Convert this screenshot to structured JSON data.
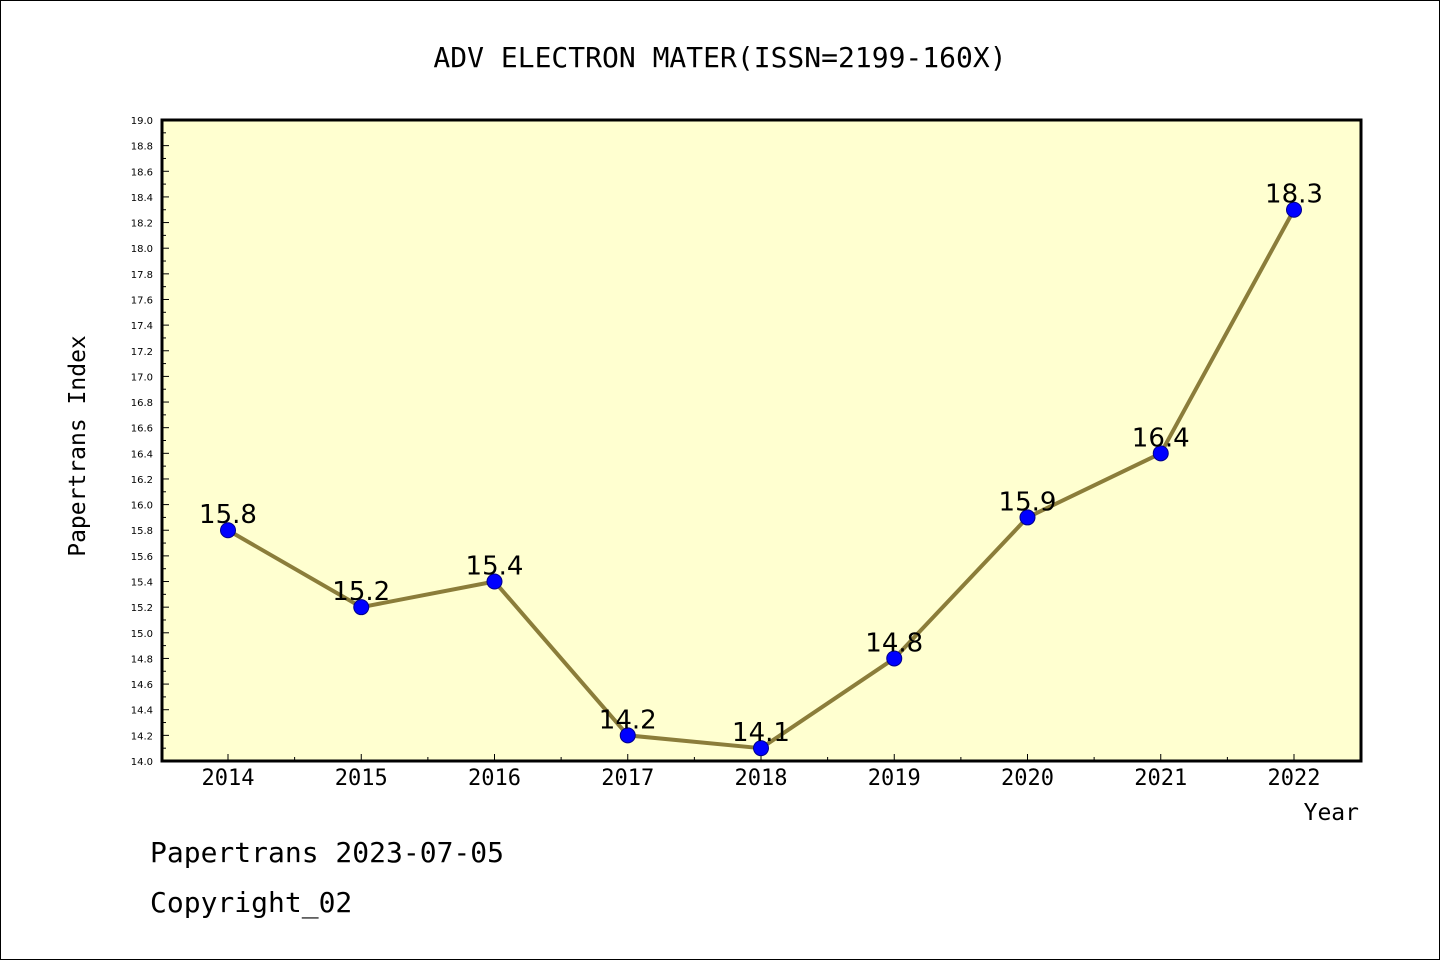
{
  "chart_data": {
    "type": "line",
    "title": "ADV ELECTRON MATER(ISSN=2199-160X)",
    "xlabel": "Year",
    "ylabel": "Papertrans Index",
    "categories": [
      "2014",
      "2015",
      "2016",
      "2017",
      "2018",
      "2019",
      "2020",
      "2021",
      "2022"
    ],
    "series": [
      {
        "values": [
          15.8,
          15.2,
          15.4,
          14.2,
          14.1,
          14.8,
          15.9,
          16.4,
          18.3
        ]
      }
    ],
    "data_labels": [
      "15.8",
      "15.2",
      "15.4",
      "14.2",
      "14.1",
      "14.8",
      "15.9",
      "16.4",
      "18.3"
    ],
    "ylim": [
      14.0,
      19.0
    ],
    "ytick_step": 0.2,
    "grid": false,
    "colors": {
      "plot_background": "#ffffd0",
      "line": "#8b7d3a",
      "marker": "#0000ff"
    }
  },
  "footer": {
    "line1": "Papertrans 2023-07-05",
    "line2": "Copyright_02"
  }
}
